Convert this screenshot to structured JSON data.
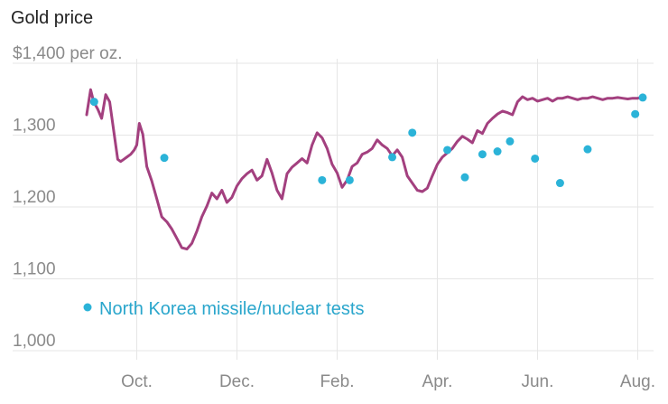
{
  "chart_data": {
    "type": "line",
    "title": "Gold price",
    "ylabel": "$1,400 per oz.",
    "ylim": [
      1000,
      1400
    ],
    "y_ticks": [
      {
        "value": 1400,
        "label": "$1,400 per oz."
      },
      {
        "value": 1300,
        "label": "1,300"
      },
      {
        "value": 1200,
        "label": "1,200"
      },
      {
        "value": 1100,
        "label": "1,100"
      },
      {
        "value": 1000,
        "label": "1,000"
      }
    ],
    "xlim": [
      0,
      11.3
    ],
    "x_ticks": [
      {
        "value": 1,
        "label": "Oct."
      },
      {
        "value": 3,
        "label": "Dec."
      },
      {
        "value": 5,
        "label": "Feb."
      },
      {
        "value": 7,
        "label": "Apr."
      },
      {
        "value": 9,
        "label": "Jun."
      },
      {
        "value": 11,
        "label": "Aug."
      }
    ],
    "grid": true,
    "colors": {
      "line": "#a3407f",
      "points": "#2bb3d8",
      "grid": "#e6e6e6",
      "legend_text": "#2aa6cc"
    },
    "series": [
      {
        "name": "Gold price",
        "x": [
          0,
          0.08,
          0.14,
          0.22,
          0.3,
          0.38,
          0.46,
          0.55,
          0.62,
          0.68,
          0.74,
          0.8,
          0.88,
          0.95,
          1.0,
          1.05,
          1.12,
          1.2,
          1.3,
          1.4,
          1.5,
          1.6,
          1.7,
          1.8,
          1.9,
          2.0,
          2.1,
          2.2,
          2.3,
          2.4,
          2.5,
          2.6,
          2.7,
          2.8,
          2.9,
          3.0,
          3.1,
          3.2,
          3.3,
          3.4,
          3.5,
          3.6,
          3.7,
          3.8,
          3.9,
          4.0,
          4.1,
          4.2,
          4.3,
          4.4,
          4.5,
          4.6,
          4.7,
          4.8,
          4.9,
          5.0,
          5.1,
          5.2,
          5.3,
          5.4,
          5.5,
          5.6,
          5.7,
          5.8,
          5.9,
          6.0,
          6.1,
          6.2,
          6.3,
          6.4,
          6.5,
          6.6,
          6.7,
          6.8,
          6.9,
          7.0,
          7.1,
          7.2,
          7.3,
          7.4,
          7.5,
          7.6,
          7.7,
          7.8,
          7.9,
          8.0,
          8.1,
          8.2,
          8.3,
          8.4,
          8.5,
          8.6,
          8.7,
          8.8,
          8.9,
          9.0,
          9.1,
          9.2,
          9.3,
          9.4,
          9.5,
          9.6,
          9.7,
          9.8,
          9.9,
          10.0,
          10.1,
          10.2,
          10.3,
          10.4,
          10.5,
          10.6,
          10.7,
          10.8,
          10.9,
          11.0,
          11.05,
          11.1
        ],
        "values": [
          1317,
          1352,
          1335,
          1325,
          1312,
          1345,
          1335,
          1290,
          1255,
          1252,
          1255,
          1258,
          1262,
          1268,
          1275,
          1305,
          1290,
          1245,
          1225,
          1200,
          1175,
          1168,
          1158,
          1145,
          1132,
          1130,
          1138,
          1155,
          1175,
          1190,
          1208,
          1200,
          1212,
          1195,
          1202,
          1218,
          1228,
          1235,
          1240,
          1226,
          1232,
          1255,
          1236,
          1212,
          1200,
          1235,
          1244,
          1250,
          1256,
          1250,
          1275,
          1292,
          1285,
          1270,
          1248,
          1236,
          1216,
          1226,
          1245,
          1250,
          1262,
          1265,
          1270,
          1282,
          1275,
          1270,
          1260,
          1268,
          1258,
          1232,
          1222,
          1212,
          1210,
          1215,
          1232,
          1248,
          1258,
          1264,
          1270,
          1280,
          1287,
          1283,
          1278,
          1295,
          1291,
          1305,
          1312,
          1318,
          1322,
          1320,
          1317,
          1335,
          1342,
          1338,
          1340,
          1336,
          1338,
          1340,
          1336,
          1340,
          1340,
          1342,
          1340,
          1338,
          1340,
          1340,
          1342,
          1340,
          1338,
          1340,
          1340,
          1341,
          1340,
          1339,
          1340,
          1340,
          1341,
          1342
        ]
      },
      {
        "name": "North Korea missile/nuclear tests",
        "x": [
          0.15,
          1.55,
          4.7,
          5.25,
          6.1,
          6.5,
          7.2,
          7.55,
          7.9,
          8.2,
          8.45,
          8.95,
          9.45,
          10.0,
          10.95,
          11.1
        ],
        "values": [
          1335,
          1257,
          1226,
          1226,
          1258,
          1292,
          1268,
          1230,
          1262,
          1266,
          1280,
          1256,
          1222,
          1269,
          1318,
          1341
        ]
      }
    ],
    "legend": {
      "label": "North Korea missile/nuclear tests",
      "placement": "bottom-left"
    }
  }
}
